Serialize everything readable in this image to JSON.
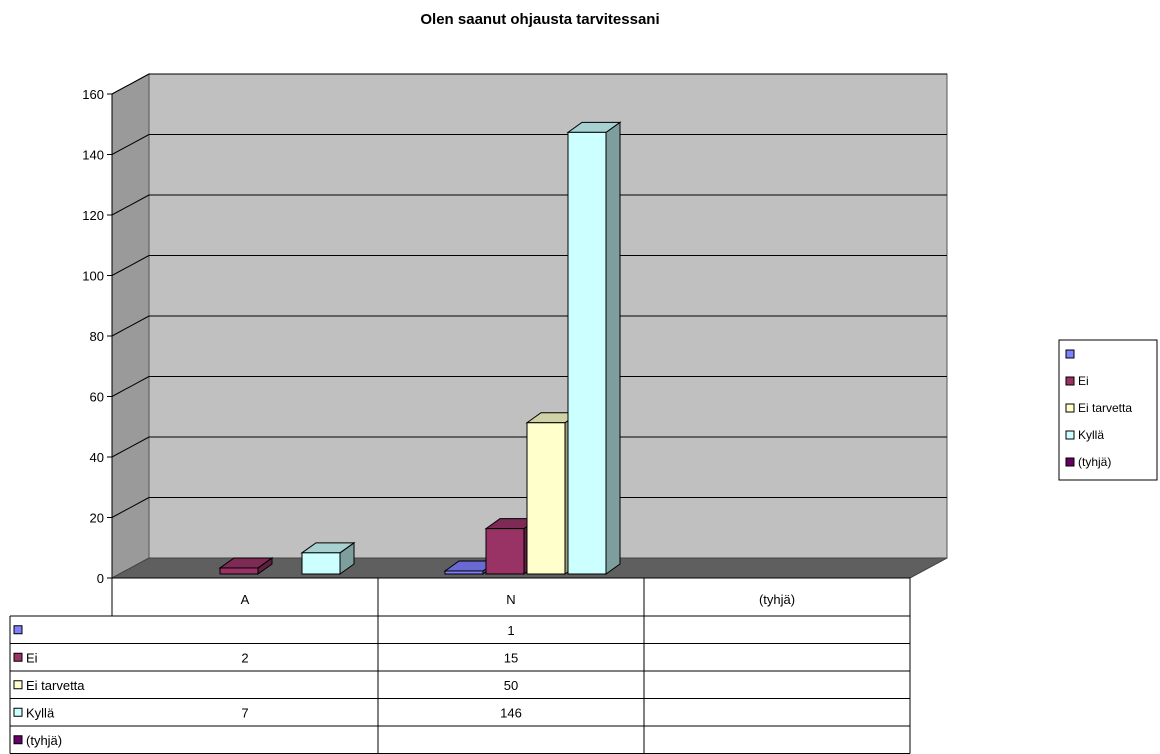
{
  "chart_data": {
    "type": "bar",
    "title": "Olen saanut ohjausta tarvitessani",
    "xlabel": "",
    "ylabel": "",
    "categories": [
      "A",
      "N",
      "(tyhjä)"
    ],
    "ylim": [
      0,
      160
    ],
    "yticks": [
      "0",
      "20",
      "40",
      "60",
      "80",
      "100",
      "120",
      "140",
      "160"
    ],
    "grid": true,
    "legend_position": "right",
    "series": [
      {
        "name": "",
        "color": "#8080ff",
        "values": [
          null,
          1,
          null
        ],
        "labels": [
          "",
          "1",
          ""
        ]
      },
      {
        "name": "Ei",
        "color": "#993366",
        "values": [
          2,
          15,
          null
        ],
        "labels": [
          "2",
          "15",
          ""
        ]
      },
      {
        "name": "Ei tarvetta",
        "color": "#ffffcc",
        "values": [
          null,
          50,
          null
        ],
        "labels": [
          "",
          "50",
          ""
        ]
      },
      {
        "name": "Kyllä",
        "color": "#ccffff",
        "values": [
          7,
          146,
          null
        ],
        "labels": [
          "7",
          "146",
          ""
        ]
      },
      {
        "name": "(tyhjä)",
        "color": "#660066",
        "values": [
          null,
          null,
          null
        ],
        "labels": [
          "",
          "",
          ""
        ]
      }
    ]
  }
}
